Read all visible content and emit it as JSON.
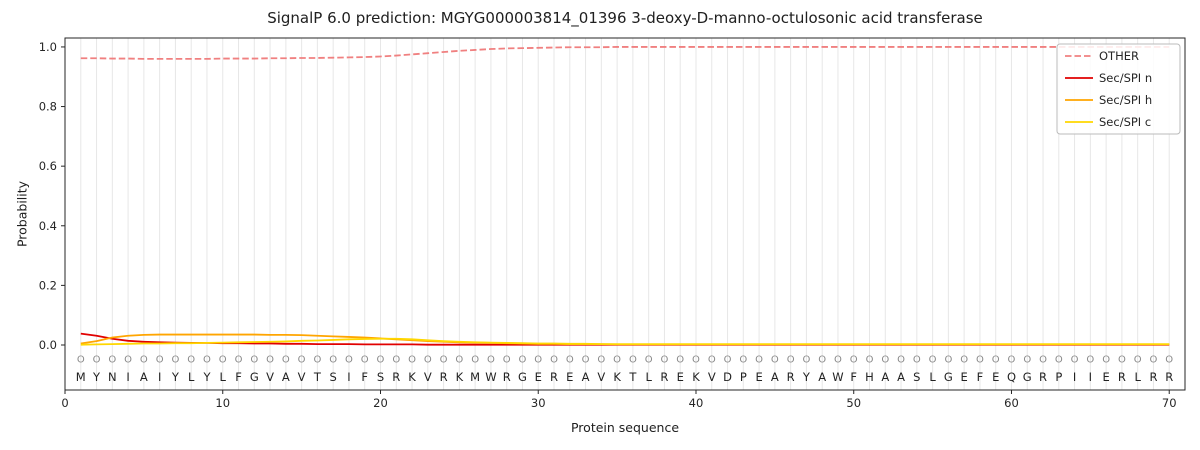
{
  "figure": {
    "title": "SignalP 6.0 prediction: MGYG000003814_01396 3-deoxy-D-manno-octulosonic acid transferase",
    "xlabel": "Protein sequence",
    "ylabel": "Probability"
  },
  "chart_data": {
    "type": "line",
    "title": "SignalP 6.0 prediction: MGYG000003814_01396 3-deoxy-D-manno-octulosonic acid transferase",
    "xlabel": "Protein sequence",
    "ylabel": "Probability",
    "xlim": [
      0,
      71
    ],
    "ylim": [
      -0.151,
      1.03
    ],
    "x_ticks": [
      0,
      10,
      20,
      30,
      40,
      50,
      60,
      70
    ],
    "y_ticks": [
      0.0,
      0.2,
      0.4,
      0.6,
      0.8,
      1.0
    ],
    "grid": "vertical-per-residue",
    "grid_color": "#e7e7e7",
    "legend_position": "upper right",
    "sequence": "MYNIAIYLYLFGVAVTSIFSRKVRKMWRGEREAVKTLREKVDPEARYAWFHAASLGEFEQGRPIIERLRR",
    "residue_labels": "OOOOOOOOOOOOOOOOOOOOOOOOOOOOOOOOOOOOOOOOOOOOOOOOOOOOOOOOOOOOOOOOOOOOOO",
    "series": [
      {
        "name": "OTHER",
        "color": "#f08080",
        "style": "dashed",
        "values": [
          0.962,
          0.962,
          0.961,
          0.961,
          0.96,
          0.96,
          0.96,
          0.96,
          0.96,
          0.961,
          0.961,
          0.961,
          0.962,
          0.962,
          0.963,
          0.963,
          0.964,
          0.965,
          0.966,
          0.968,
          0.971,
          0.975,
          0.979,
          0.983,
          0.987,
          0.99,
          0.993,
          0.995,
          0.996,
          0.997,
          0.998,
          0.999,
          0.999,
          0.999,
          1.0,
          1.0,
          1.0,
          1.0,
          1.0,
          1.0,
          1.0,
          1.0,
          1.0,
          1.0,
          1.0,
          1.0,
          1.0,
          1.0,
          1.0,
          1.0,
          1.0,
          1.0,
          1.0,
          1.0,
          1.0,
          1.0,
          1.0,
          1.0,
          1.0,
          1.0,
          1.0,
          1.0,
          1.0,
          1.0,
          1.0,
          1.0,
          1.0,
          1.0,
          1.0,
          1.0
        ]
      },
      {
        "name": "Sec/SPI n",
        "color": "#e10000",
        "style": "solid",
        "values": [
          0.038,
          0.031,
          0.021,
          0.014,
          0.011,
          0.009,
          0.008,
          0.007,
          0.007,
          0.006,
          0.006,
          0.005,
          0.005,
          0.004,
          0.004,
          0.003,
          0.003,
          0.003,
          0.002,
          0.002,
          0.002,
          0.002,
          0.001,
          0.001,
          0.001,
          0.001,
          0.001,
          0.001,
          0.001,
          0.001,
          0.001,
          0.001,
          0.001,
          0.001,
          0.001,
          0.001,
          0.001,
          0.001,
          0.001,
          0.001,
          0.001,
          0.001,
          0.001,
          0.001,
          0.001,
          0.001,
          0.001,
          0.001,
          0.001,
          0.001,
          0.001,
          0.001,
          0.001,
          0.001,
          0.001,
          0.001,
          0.001,
          0.001,
          0.001,
          0.001,
          0.001,
          0.001,
          0.001,
          0.001,
          0.001,
          0.001,
          0.001,
          0.001,
          0.001,
          0.001
        ]
      },
      {
        "name": "Sec/SPI h",
        "color": "#ffa500",
        "style": "solid",
        "values": [
          0.005,
          0.013,
          0.025,
          0.031,
          0.034,
          0.035,
          0.035,
          0.035,
          0.035,
          0.035,
          0.035,
          0.035,
          0.034,
          0.034,
          0.033,
          0.031,
          0.029,
          0.027,
          0.025,
          0.022,
          0.019,
          0.016,
          0.013,
          0.011,
          0.009,
          0.008,
          0.007,
          0.006,
          0.005,
          0.004,
          0.004,
          0.003,
          0.003,
          0.003,
          0.002,
          0.002,
          0.002,
          0.002,
          0.002,
          0.002,
          0.002,
          0.002,
          0.002,
          0.002,
          0.002,
          0.002,
          0.002,
          0.002,
          0.002,
          0.002,
          0.002,
          0.002,
          0.002,
          0.002,
          0.002,
          0.002,
          0.002,
          0.002,
          0.002,
          0.002,
          0.002,
          0.002,
          0.002,
          0.002,
          0.002,
          0.002,
          0.002,
          0.002,
          0.002,
          0.002
        ]
      },
      {
        "name": "Sec/SPI c",
        "color": "#ffd700",
        "style": "solid",
        "values": [
          0.001,
          0.002,
          0.003,
          0.004,
          0.005,
          0.005,
          0.006,
          0.006,
          0.007,
          0.008,
          0.009,
          0.01,
          0.011,
          0.012,
          0.014,
          0.015,
          0.017,
          0.019,
          0.02,
          0.021,
          0.021,
          0.019,
          0.016,
          0.013,
          0.011,
          0.009,
          0.008,
          0.007,
          0.006,
          0.005,
          0.005,
          0.004,
          0.004,
          0.003,
          0.003,
          0.003,
          0.003,
          0.003,
          0.003,
          0.003,
          0.003,
          0.003,
          0.003,
          0.003,
          0.003,
          0.003,
          0.003,
          0.003,
          0.003,
          0.003,
          0.003,
          0.003,
          0.003,
          0.003,
          0.003,
          0.003,
          0.003,
          0.003,
          0.003,
          0.003,
          0.003,
          0.003,
          0.003,
          0.003,
          0.003,
          0.003,
          0.003,
          0.003,
          0.003,
          0.003
        ]
      }
    ]
  }
}
